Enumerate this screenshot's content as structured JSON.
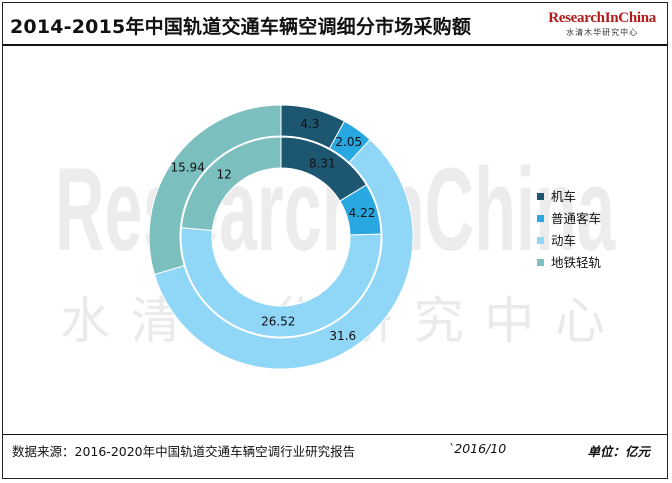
{
  "header": {
    "title": "2014-2015年中国轨道交通车辆空调细分市场采购额",
    "logo_en": "ResearchInChina",
    "logo_cn": "水清木华研究中心"
  },
  "watermark": {
    "text_en": "ResearchInChina",
    "text_cn": "水清木华研究中心"
  },
  "footer": {
    "source": "数据来源：2016-2020年中国轨道交通车辆空调行业研究报告",
    "date": "`2016/10",
    "unit": "单位：亿元"
  },
  "colors": {
    "机车": "#1d5670",
    "普通客车": "#29a7e1",
    "动车": "#8fd6f7",
    "地铁轻轨": "#7bbfbe"
  },
  "chart_data": {
    "type": "donut",
    "title": "2014-2015年中国轨道交通车辆空调细分市场采购额",
    "unit": "亿元",
    "categories": [
      "机车",
      "普通客车",
      "动车",
      "地铁轻轨"
    ],
    "series": [
      {
        "ring": "inner",
        "values": [
          8.31,
          4.22,
          26.52,
          12
        ]
      },
      {
        "ring": "outer",
        "values": [
          4.3,
          2.05,
          31.6,
          15.94
        ]
      }
    ],
    "legend": {
      "position": "right",
      "entries": [
        "机车",
        "普通客车",
        "动车",
        "地铁轻轨"
      ]
    }
  }
}
